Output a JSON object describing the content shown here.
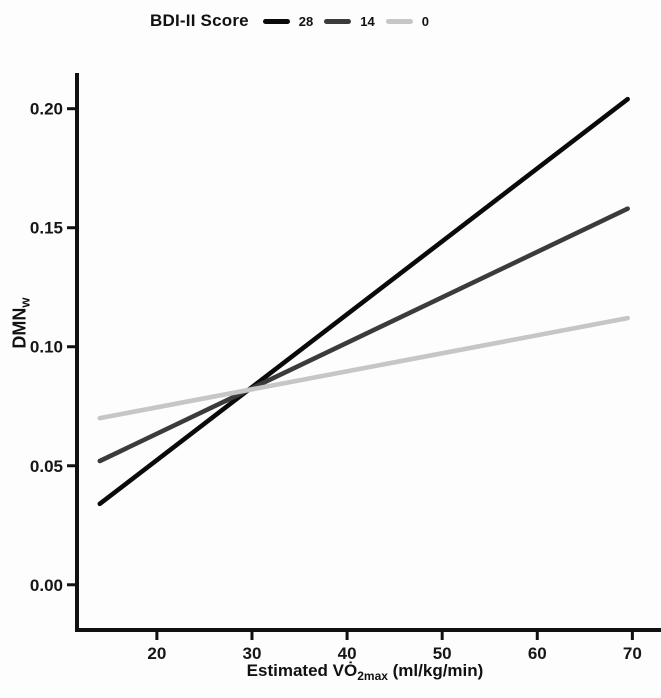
{
  "figure": {
    "background": "#fdfdfd",
    "text_color": "#111111"
  },
  "legend": {
    "title": "BDI-II Score",
    "position": "top-center",
    "items": [
      {
        "label": "28",
        "color": "#0a0a0a"
      },
      {
        "label": "14",
        "color": "#3b3b3b"
      },
      {
        "label": "0",
        "color": "#c6c6c6"
      }
    ]
  },
  "chart_data": {
    "type": "line",
    "title": "",
    "xlabel": "Estimated V̇O2max (ml/kg/min)",
    "xlabel_parts": {
      "pre": "Estimated VȮ",
      "sub": "2max",
      "post": " (ml/kg/min)"
    },
    "ylabel": "DMNw",
    "ylabel_parts": {
      "main": "DMN",
      "sub": "w"
    },
    "xlim": [
      11.6,
      72.8
    ],
    "ylim": [
      -0.019,
      0.215
    ],
    "x_ticks": [
      20,
      30,
      40,
      50,
      60,
      70
    ],
    "y_ticks": [
      "0.00",
      "0.05",
      "0.10",
      "0.15",
      "0.20"
    ],
    "grid": false,
    "legend_position": "top",
    "axis_color": "#111111",
    "series": [
      {
        "name": "28",
        "color": "#0a0a0a",
        "x": [
          14,
          69.5
        ],
        "y": [
          0.034,
          0.204
        ]
      },
      {
        "name": "14",
        "color": "#3b3b3b",
        "x": [
          14,
          69.5
        ],
        "y": [
          0.052,
          0.158
        ]
      },
      {
        "name": "0",
        "color": "#c6c6c6",
        "x": [
          14,
          69.5
        ],
        "y": [
          0.07,
          0.112
        ]
      }
    ]
  }
}
